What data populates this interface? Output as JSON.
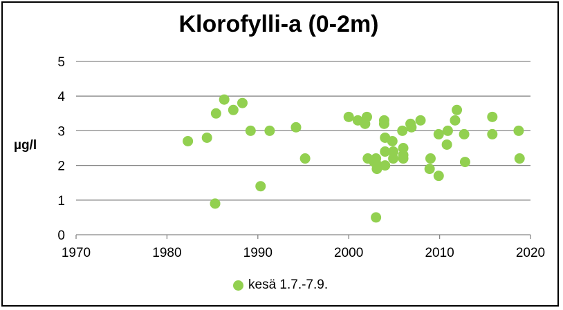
{
  "chart_data": {
    "type": "scatter",
    "title": "Klorofylli-a (0-2m)",
    "xlabel": "",
    "ylabel": "µg/l",
    "xlim": [
      1970,
      2020
    ],
    "ylim": [
      0,
      5
    ],
    "xticks": [
      "1970",
      "1980",
      "1990",
      "2000",
      "2010",
      "2020"
    ],
    "yticks": [
      "0",
      "1",
      "2",
      "3",
      "4",
      "5"
    ],
    "grid": "horizontal",
    "legend_position": "bottom",
    "series": [
      {
        "name": "kesä 1.7.-7.9.",
        "color": "#92d050",
        "points": [
          [
            1982.3,
            2.7
          ],
          [
            1984.4,
            2.8
          ],
          [
            1985.3,
            0.9
          ],
          [
            1985.4,
            3.5
          ],
          [
            1986.3,
            3.9
          ],
          [
            1987.3,
            3.6
          ],
          [
            1988.3,
            3.8
          ],
          [
            1989.2,
            3.0
          ],
          [
            1990.3,
            1.4
          ],
          [
            1991.3,
            3.0
          ],
          [
            1994.2,
            3.1
          ],
          [
            1995.2,
            2.2
          ],
          [
            2000.0,
            3.4
          ],
          [
            2001.0,
            3.3
          ],
          [
            2001.8,
            3.2
          ],
          [
            2002.0,
            3.4
          ],
          [
            2002.1,
            2.2
          ],
          [
            2002.8,
            2.1
          ],
          [
            2003.0,
            2.2
          ],
          [
            2003.0,
            0.5
          ],
          [
            2003.1,
            1.9
          ],
          [
            2003.2,
            2.0
          ],
          [
            2003.9,
            3.3
          ],
          [
            2003.9,
            3.2
          ],
          [
            2004.0,
            2.8
          ],
          [
            2004.0,
            2.4
          ],
          [
            2004.0,
            2.0
          ],
          [
            2004.8,
            2.7
          ],
          [
            2004.9,
            2.4
          ],
          [
            2004.9,
            2.2
          ],
          [
            2005.9,
            3.0
          ],
          [
            2006.0,
            2.5
          ],
          [
            2006.0,
            2.3
          ],
          [
            2006.0,
            2.2
          ],
          [
            2006.8,
            3.2
          ],
          [
            2006.9,
            3.1
          ],
          [
            2007.9,
            3.3
          ],
          [
            2008.9,
            1.9
          ],
          [
            2009.0,
            2.2
          ],
          [
            2009.9,
            2.9
          ],
          [
            2009.9,
            1.7
          ],
          [
            2010.8,
            2.6
          ],
          [
            2010.9,
            3.0
          ],
          [
            2011.7,
            3.3
          ],
          [
            2011.9,
            3.6
          ],
          [
            2012.7,
            2.9
          ],
          [
            2012.8,
            2.1
          ],
          [
            2015.8,
            3.4
          ],
          [
            2015.8,
            2.9
          ],
          [
            2018.7,
            3.0
          ],
          [
            2018.8,
            2.2
          ]
        ]
      }
    ]
  }
}
